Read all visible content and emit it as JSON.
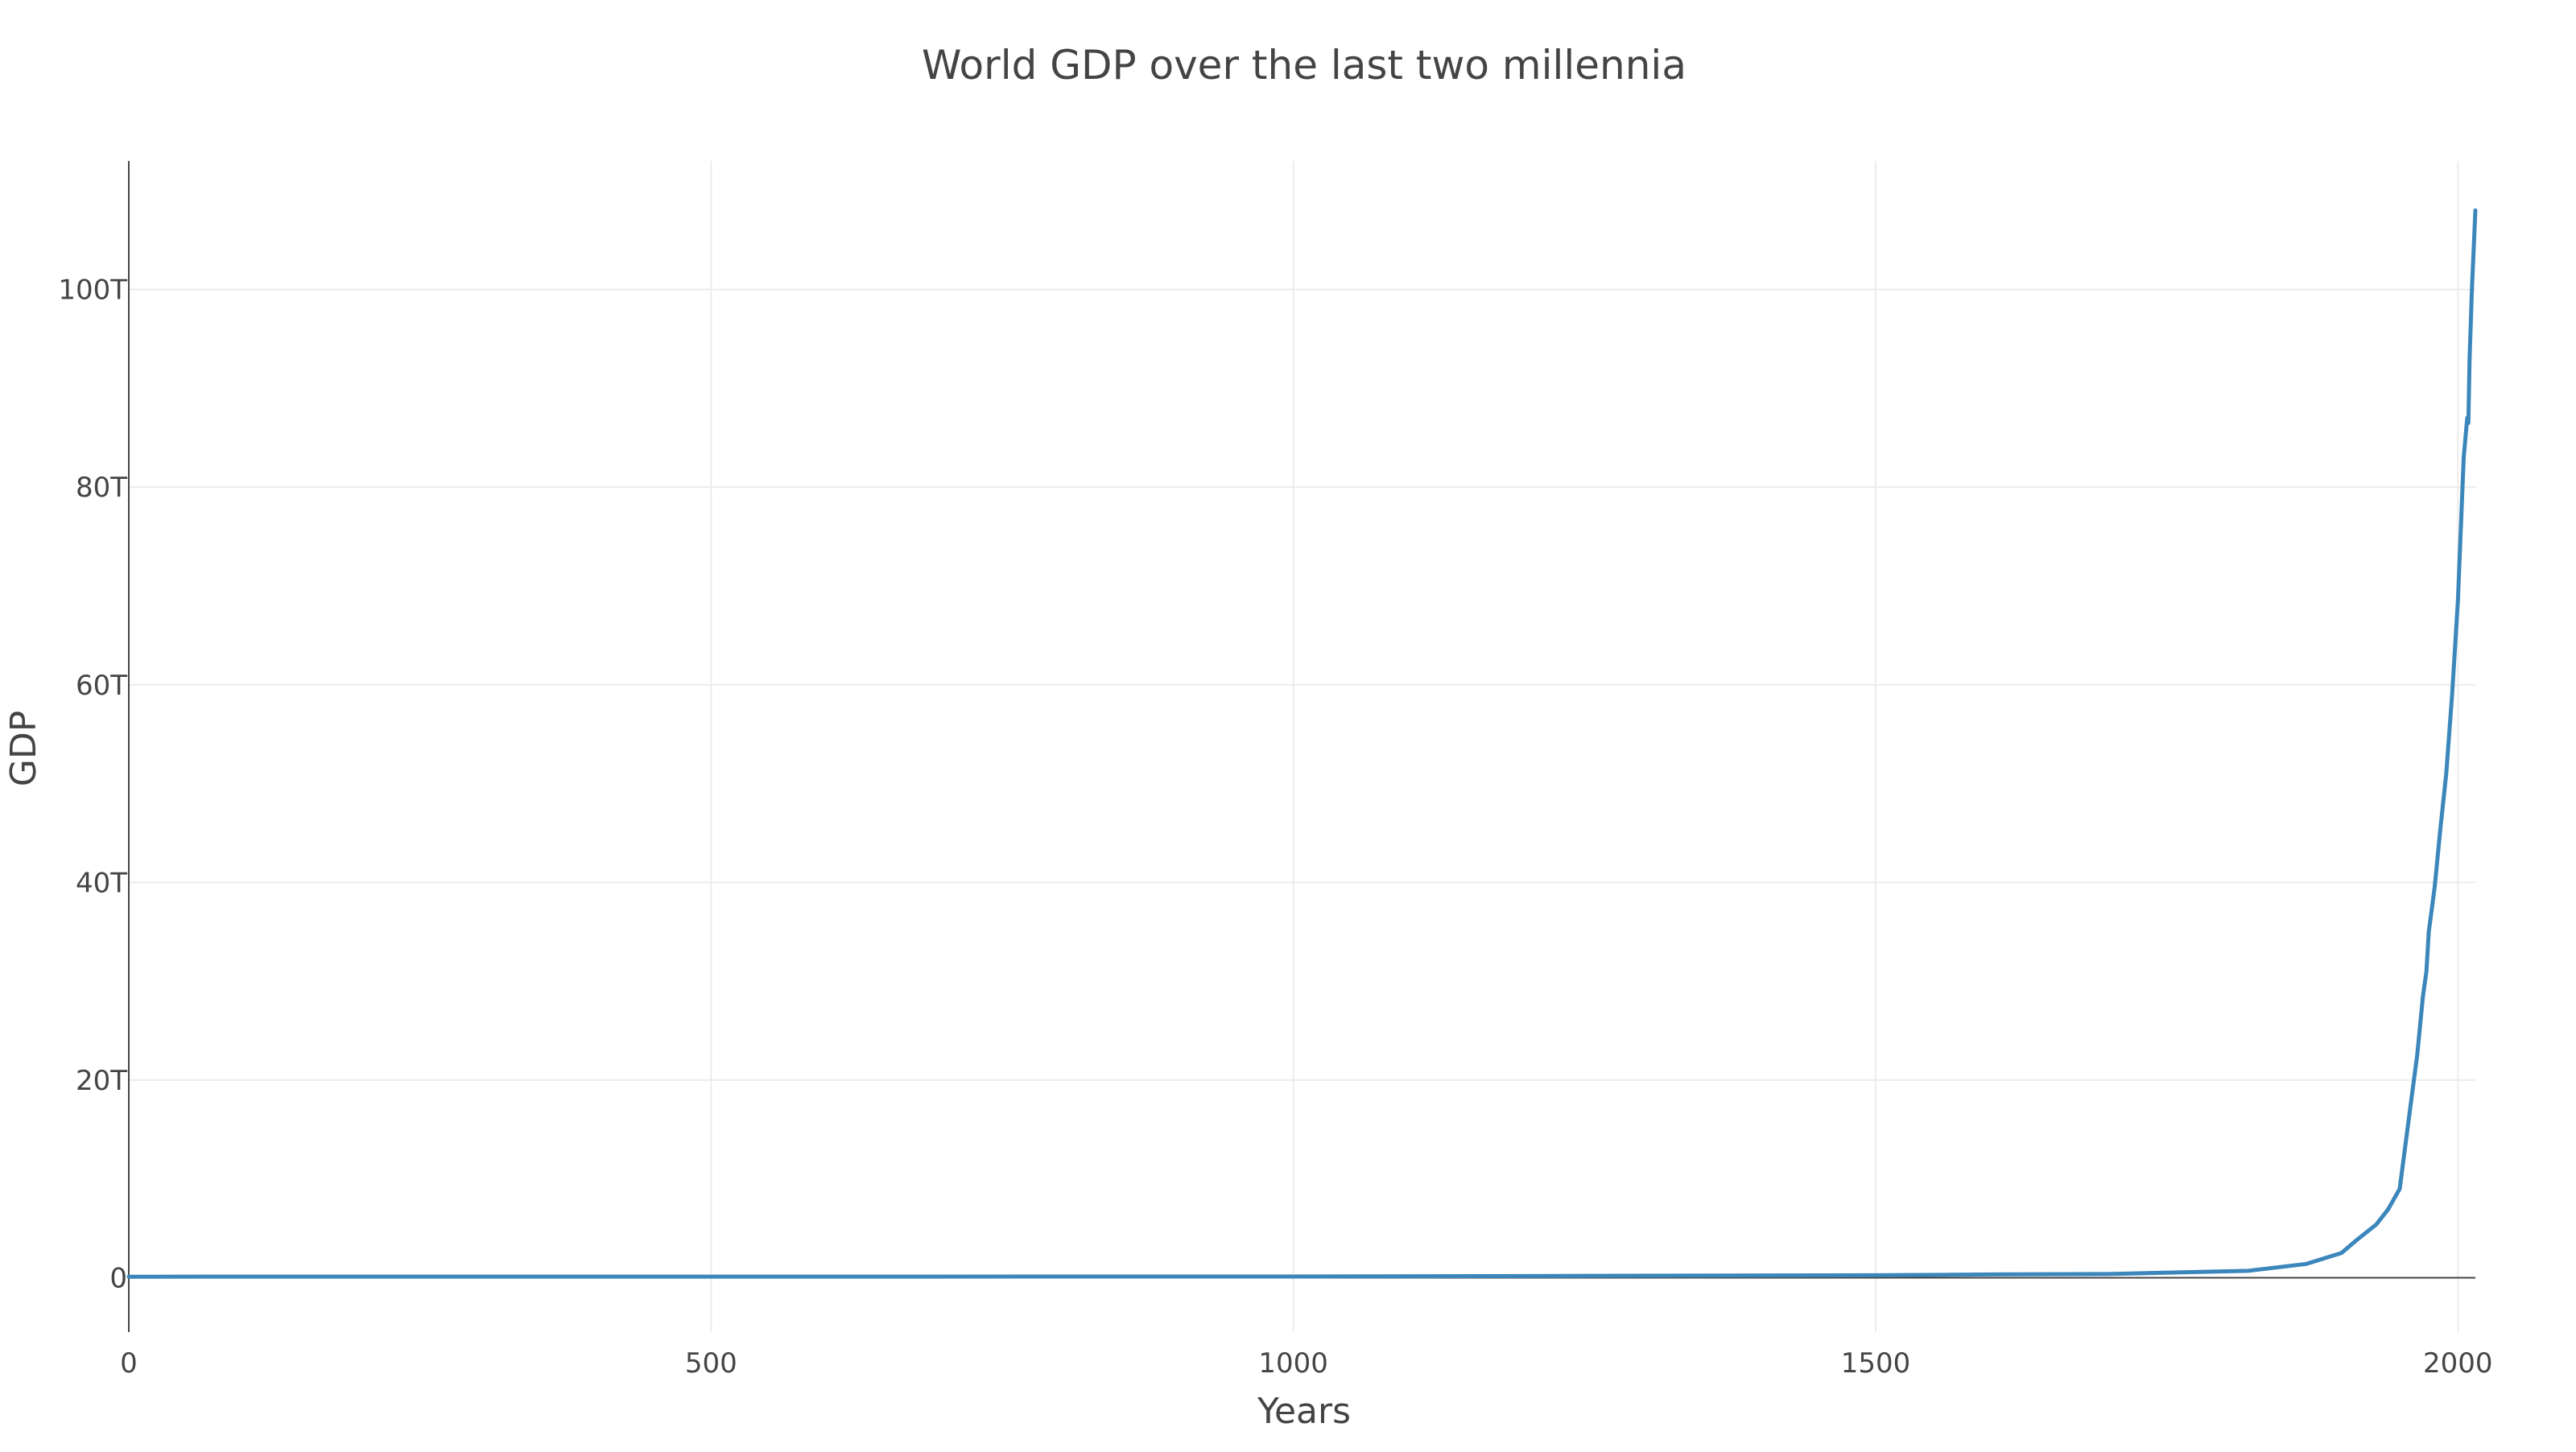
{
  "chart_data": {
    "type": "line",
    "title": "World GDP over the last two millennia",
    "xlabel": "Years",
    "ylabel": "GDP",
    "xlim": [
      0,
      2015
    ],
    "ylim": [
      -5500000000000.0,
      113000000000000.0
    ],
    "x_ticks": [
      0,
      500,
      1000,
      1500,
      2000
    ],
    "x_tick_labels": [
      "0",
      "500",
      "1000",
      "1500",
      "2000"
    ],
    "y_ticks": [
      0,
      20000000000000.0,
      40000000000000.0,
      60000000000000.0,
      80000000000000.0,
      100000000000000.0
    ],
    "y_tick_labels": [
      "0",
      "20T",
      "40T",
      "60T",
      "80T",
      "100T"
    ],
    "grid": true,
    "line_color": "#3b86bb",
    "series": [
      {
        "x": [
          0,
          1000,
          1500,
          1600,
          1700,
          1820,
          1870,
          1900,
          1913,
          1930,
          1940,
          1950,
          1955,
          1960,
          1965,
          1970,
          1973,
          1975,
          1980,
          1985,
          1990,
          1995,
          2000,
          2005,
          2008,
          2009,
          2010,
          2012,
          2015
        ],
        "y": [
          100000000000.0,
          120000000000.0,
          250000000000.0,
          330000000000.0,
          370000000000.0,
          700000000000.0,
          1400000000000.0,
          2500000000000.0,
          3800000000000.0,
          5400000000000.0,
          6900000000000.0,
          9000000000000.0,
          13500000000000.0,
          18000000000000.0,
          22500000000000.0,
          28500000000000.0,
          31000000000000.0,
          35000000000000.0,
          39500000000000.0,
          45500000000000.0,
          51000000000000.0,
          59000000000000.0,
          68500000000000.0,
          83000000000000.0,
          87000000000000.0,
          86500000000000.0,
          93000000000000.0,
          100000000000000.0,
          108000000000000.0
        ]
      }
    ]
  }
}
